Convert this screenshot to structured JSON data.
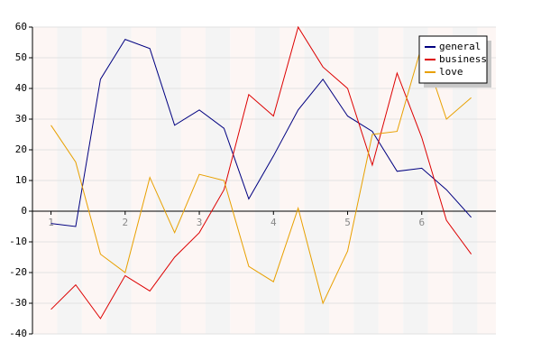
{
  "chart_data": {
    "type": "line",
    "x": [
      1,
      1.333,
      1.667,
      2,
      2.333,
      2.667,
      3,
      3.333,
      3.667,
      4,
      4.333,
      4.667,
      5,
      5.333,
      5.667,
      6,
      6.333,
      6.667
    ],
    "series": [
      {
        "name": "general",
        "color": "#000080",
        "values": [
          -4,
          -5,
          43,
          56,
          53,
          28,
          33,
          27,
          4,
          18,
          33,
          43,
          31,
          26,
          13,
          14,
          7,
          -2
        ]
      },
      {
        "name": "business",
        "color": "#dd0000",
        "values": [
          -32,
          -24,
          -35,
          -21,
          -26,
          -15,
          -7,
          7,
          38,
          31,
          60,
          47,
          40,
          15,
          45,
          24,
          -3,
          -14
        ]
      },
      {
        "name": "love",
        "color": "#e8a000",
        "values": [
          28,
          16,
          -14,
          -20,
          11,
          -7,
          12,
          10,
          -18,
          -23,
          1,
          -30,
          -13,
          25,
          26,
          54,
          30,
          37
        ]
      }
    ],
    "xlim": [
      0.75,
      7
    ],
    "xticks": [
      1,
      2,
      3,
      4,
      5,
      6
    ],
    "ylim": [
      -40,
      60
    ],
    "yticks": [
      -40,
      -30,
      -20,
      -10,
      0,
      10,
      20,
      30,
      40,
      50,
      60
    ],
    "grid": true,
    "legend": "top-right"
  }
}
